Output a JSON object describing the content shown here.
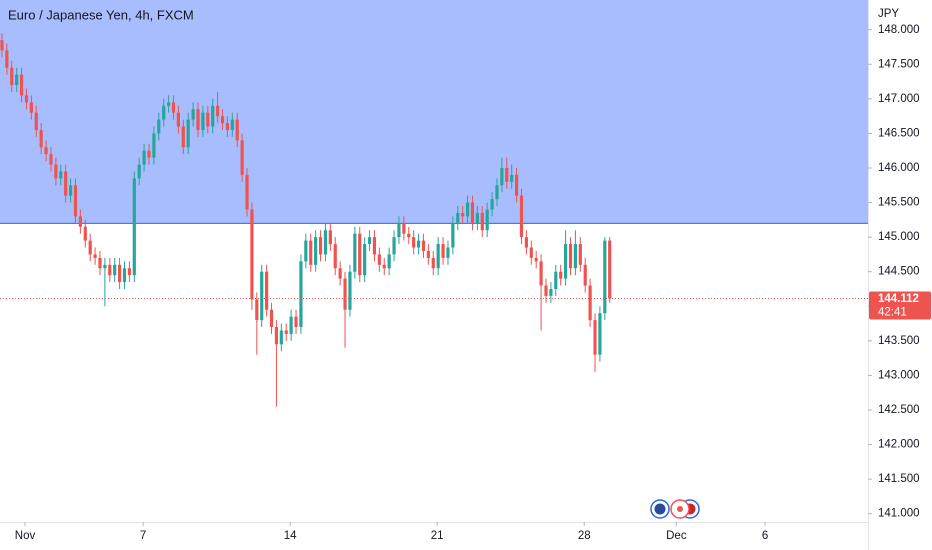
{
  "chart_data": {
    "type": "candlestick",
    "title": "Euro / Japanese Yen, 4h, FXCM",
    "currency": "JPY",
    "countdown": "42:41",
    "up_color": "#26a69a",
    "down_color": "#ef5350",
    "zone": {
      "low": 145.2,
      "color": "#a8bdfe",
      "line_color": "#2962ff"
    },
    "ylim": [
      140.88,
      148.43
    ],
    "yticks": [
      {
        "value": 141,
        "label": "141.000"
      },
      {
        "value": 141.5,
        "label": "141.500"
      },
      {
        "value": 142,
        "label": "142.000"
      },
      {
        "value": 142.5,
        "label": "142.500"
      },
      {
        "value": 143,
        "label": "143.000"
      },
      {
        "value": 143.5,
        "label": "143.500"
      },
      {
        "value": 144,
        "label": "144.000"
      },
      {
        "value": 144.5,
        "label": "144.500"
      },
      {
        "value": 145,
        "label": "145.000"
      },
      {
        "value": 145.5,
        "label": "145.500"
      },
      {
        "value": 146,
        "label": "146.000"
      },
      {
        "value": 146.5,
        "label": "146.500"
      },
      {
        "value": 147,
        "label": "147.000"
      },
      {
        "value": 147.5,
        "label": "147.500"
      },
      {
        "value": 148,
        "label": "148.000"
      }
    ],
    "xlim": [
      -0.4,
      176.7
    ],
    "xticks": [
      {
        "value": 4.7,
        "label": "Nov"
      },
      {
        "value": 28.8,
        "label": "7"
      },
      {
        "value": 58.8,
        "label": "14"
      },
      {
        "value": 88.8,
        "label": "21"
      },
      {
        "value": 118.8,
        "label": "28"
      },
      {
        "value": 137.6,
        "label": "Dec"
      },
      {
        "value": 155.7,
        "label": "6"
      }
    ],
    "open": [
      147.85,
      147.7,
      147.45,
      147.2,
      147.35,
      147.05,
      146.95,
      146.8,
      146.55,
      146.3,
      146.2,
      146.05,
      145.85,
      145.95,
      145.6,
      145.75,
      145.3,
      145.15,
      144.95,
      144.75,
      144.7,
      144.55,
      144.6,
      144.45,
      144.6,
      144.35,
      144.55,
      144.45,
      145.85,
      146.05,
      146.25,
      146.15,
      146.5,
      146.7,
      146.9,
      146.95,
      146.8,
      146.6,
      146.3,
      146.7,
      146.85,
      146.55,
      146.8,
      146.6,
      146.9,
      146.75,
      146.65,
      146.55,
      146.7,
      146.4,
      145.9,
      145.4,
      144.1,
      143.8,
      144.5,
      143.95,
      143.7,
      143.45,
      143.65,
      143.6,
      143.85,
      143.7,
      144.65,
      144.95,
      144.6,
      145.0,
      144.75,
      145.1,
      144.9,
      144.55,
      144.4,
      143.95,
      144.5,
      145.05,
      144.45,
      144.9,
      145.0,
      144.75,
      144.6,
      144.55,
      144.75,
      145.0,
      145.2,
      145.05,
      145.0,
      144.85,
      144.95,
      144.8,
      144.7,
      144.55,
      144.9,
      144.7,
      144.85,
      145.2,
      145.35,
      145.3,
      145.5,
      145.2,
      145.35,
      145.1,
      145.4,
      145.55,
      145.75,
      146.0,
      145.8,
      145.9,
      145.6,
      145.0,
      144.85,
      144.7,
      144.65,
      144.3,
      144.15,
      144.25,
      144.5,
      144.4,
      144.9,
      144.55,
      144.9,
      144.6,
      144.3,
      143.8,
      143.3,
      143.9,
      144.95
    ],
    "high": [
      147.95,
      147.8,
      147.55,
      147.45,
      147.45,
      147.15,
      147.05,
      146.9,
      146.65,
      146.4,
      146.3,
      146.15,
      146.05,
      146.05,
      145.85,
      145.85,
      145.4,
      145.25,
      145.05,
      144.85,
      144.8,
      144.7,
      144.7,
      144.7,
      144.7,
      144.65,
      144.65,
      145.95,
      146.15,
      146.35,
      146.35,
      146.6,
      146.8,
      147.0,
      147.05,
      147.05,
      146.9,
      146.7,
      146.8,
      146.95,
      146.95,
      146.9,
      146.9,
      147.0,
      147.1,
      146.85,
      146.75,
      146.8,
      146.8,
      146.5,
      146.0,
      145.5,
      144.2,
      144.6,
      144.6,
      144.05,
      143.8,
      143.75,
      143.75,
      143.95,
      143.95,
      144.75,
      145.05,
      145.05,
      145.1,
      145.1,
      145.2,
      145.2,
      145.0,
      144.65,
      144.5,
      144.6,
      145.15,
      145.15,
      145.0,
      145.1,
      145.1,
      144.85,
      144.7,
      144.85,
      145.1,
      145.3,
      145.3,
      145.15,
      145.1,
      145.05,
      145.05,
      144.9,
      144.8,
      145.0,
      145.0,
      144.95,
      145.3,
      145.45,
      145.45,
      145.6,
      145.6,
      145.45,
      145.45,
      145.5,
      145.65,
      145.85,
      146.15,
      146.15,
      146.05,
      146.0,
      145.7,
      145.1,
      144.95,
      144.8,
      144.75,
      144.4,
      144.35,
      144.6,
      144.6,
      145.1,
      145.0,
      145.1,
      145.0,
      144.7,
      144.4,
      143.9,
      144.0,
      145.0,
      145.0
    ],
    "low": [
      147.6,
      147.35,
      147.1,
      147.1,
      146.95,
      146.85,
      146.7,
      146.45,
      146.2,
      146.1,
      145.95,
      145.75,
      145.75,
      145.5,
      145.5,
      145.2,
      145.05,
      144.85,
      144.65,
      144.6,
      144.45,
      144.0,
      144.35,
      144.35,
      144.25,
      144.25,
      144.35,
      144.35,
      145.75,
      145.95,
      146.05,
      146.05,
      146.4,
      146.6,
      146.8,
      146.7,
      146.5,
      146.2,
      146.2,
      146.6,
      146.45,
      146.45,
      146.5,
      146.5,
      146.65,
      146.55,
      146.45,
      146.45,
      146.3,
      145.8,
      145.3,
      143.95,
      143.3,
      143.7,
      143.85,
      143.6,
      142.55,
      143.35,
      143.5,
      143.5,
      143.6,
      143.6,
      144.55,
      144.5,
      144.5,
      144.65,
      144.65,
      144.8,
      144.45,
      144.3,
      143.4,
      143.85,
      144.4,
      144.35,
      144.35,
      144.8,
      144.65,
      144.5,
      144.45,
      144.45,
      144.65,
      144.9,
      144.95,
      144.9,
      144.75,
      144.75,
      144.7,
      144.6,
      144.45,
      144.45,
      144.6,
      144.6,
      144.75,
      145.1,
      145.2,
      145.2,
      145.1,
      145.1,
      145.0,
      145.0,
      145.3,
      145.45,
      145.65,
      145.7,
      145.7,
      145.5,
      144.9,
      144.75,
      144.6,
      144.55,
      143.65,
      144.05,
      144.05,
      144.15,
      144.3,
      144.3,
      144.45,
      144.45,
      144.5,
      144.2,
      143.7,
      143.05,
      143.2,
      143.8,
      144.05
    ],
    "close": [
      147.7,
      147.45,
      147.2,
      147.35,
      147.05,
      146.95,
      146.8,
      146.55,
      146.3,
      146.2,
      146.05,
      145.85,
      145.95,
      145.6,
      145.75,
      145.3,
      145.15,
      144.95,
      144.75,
      144.7,
      144.55,
      144.6,
      144.45,
      144.6,
      144.35,
      144.55,
      144.45,
      145.85,
      146.05,
      146.25,
      146.15,
      146.5,
      146.7,
      146.9,
      146.95,
      146.8,
      146.6,
      146.3,
      146.7,
      146.85,
      146.55,
      146.8,
      146.6,
      146.9,
      146.75,
      146.65,
      146.55,
      146.7,
      146.4,
      145.9,
      145.4,
      144.1,
      143.8,
      144.5,
      143.95,
      143.7,
      143.45,
      143.65,
      143.6,
      143.85,
      143.7,
      144.65,
      144.95,
      144.6,
      145.0,
      144.75,
      145.1,
      144.9,
      144.55,
      144.4,
      143.95,
      144.5,
      145.05,
      144.45,
      144.9,
      145.0,
      144.75,
      144.6,
      144.55,
      144.75,
      145.0,
      145.2,
      145.05,
      145.0,
      144.85,
      144.95,
      144.8,
      144.7,
      144.55,
      144.9,
      144.7,
      144.85,
      145.2,
      145.35,
      145.3,
      145.5,
      145.2,
      145.35,
      145.1,
      145.4,
      145.55,
      145.75,
      146.0,
      145.8,
      145.9,
      145.6,
      145.0,
      144.85,
      144.7,
      144.65,
      144.3,
      144.15,
      144.25,
      144.5,
      144.4,
      144.9,
      144.55,
      144.9,
      144.6,
      144.3,
      143.8,
      143.3,
      143.9,
      144.95,
      144.112
    ]
  }
}
